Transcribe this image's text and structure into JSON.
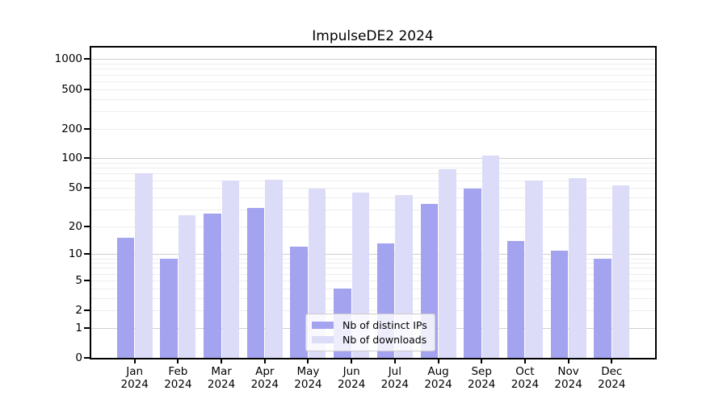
{
  "title": "ImpulseDE2 2024",
  "chart_data": {
    "type": "bar",
    "title": "ImpulseDE2 2024",
    "yscale": "log1p",
    "grid": true,
    "categories": [
      "Jan",
      "Feb",
      "Mar",
      "Apr",
      "May",
      "Jun",
      "Jul",
      "Aug",
      "Sep",
      "Oct",
      "Nov",
      "Dec"
    ],
    "year_label": "2024",
    "series": [
      {
        "name": "Nb of distinct IPs",
        "color": "#a3a3f0",
        "values": [
          15,
          9,
          27,
          31,
          12,
          4,
          13,
          34,
          49,
          14,
          11,
          9
        ]
      },
      {
        "name": "Nb of downloads",
        "color": "#dcdcf8",
        "values": [
          71,
          26,
          60,
          61,
          49,
          45,
          42,
          77,
          107,
          60,
          63,
          53
        ]
      }
    ],
    "y_ticks": [
      0,
      1,
      2,
      5,
      10,
      20,
      50,
      100,
      200,
      500,
      1000
    ],
    "ylim": [
      0,
      1300
    ],
    "legend_position": "lower center",
    "legend_labels": [
      "Nb of distinct IPs",
      "Nb of downloads"
    ]
  },
  "colors": {
    "background": "#ffffff",
    "spine": "#000000",
    "major_grid": "#cfcfcf",
    "minor_grid": "#ededed",
    "distinct_ips_bar": "#a3a3f0",
    "downloads_bar": "#dcdcf8"
  }
}
